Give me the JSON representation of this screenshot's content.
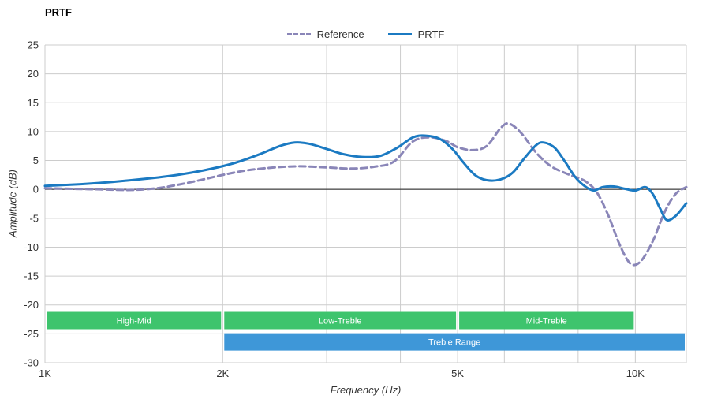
{
  "chart_data": {
    "type": "line",
    "title": "PRTF",
    "xlabel": "Frequency (Hz)",
    "ylabel": "Amplitude (dB)",
    "x_scale": "log",
    "x_unit": "kHz",
    "x_range_khz": [
      1,
      12.2
    ],
    "y_range": [
      -30,
      25
    ],
    "y_ticks": [
      25,
      20,
      15,
      10,
      5,
      0,
      -5,
      -10,
      -15,
      -20,
      -25,
      -30
    ],
    "x_ticks": [
      {
        "khz": 1,
        "label": "1K"
      },
      {
        "khz": 2,
        "label": "2K"
      },
      {
        "khz": 5,
        "label": "5K"
      },
      {
        "khz": 10,
        "label": "10K"
      }
    ],
    "x_gridlines_khz": [
      1,
      2,
      3,
      4,
      5,
      6,
      8,
      10,
      12.2
    ],
    "grid": true,
    "legend_position": "top-center",
    "series": [
      {
        "name": "Reference",
        "style": "dashed",
        "color": "#8a86b8",
        "points": [
          [
            1.0,
            0.2
          ],
          [
            1.1,
            0.1
          ],
          [
            1.25,
            0.0
          ],
          [
            1.4,
            -0.1
          ],
          [
            1.55,
            0.2
          ],
          [
            1.7,
            0.9
          ],
          [
            1.85,
            1.7
          ],
          [
            2.0,
            2.5
          ],
          [
            2.2,
            3.3
          ],
          [
            2.45,
            3.8
          ],
          [
            2.7,
            4.0
          ],
          [
            3.0,
            3.8
          ],
          [
            3.3,
            3.6
          ],
          [
            3.6,
            3.9
          ],
          [
            3.9,
            4.8
          ],
          [
            4.2,
            8.3
          ],
          [
            4.5,
            9.0
          ],
          [
            4.8,
            8.3
          ],
          [
            5.0,
            7.3
          ],
          [
            5.3,
            6.8
          ],
          [
            5.6,
            7.5
          ],
          [
            5.9,
            10.5
          ],
          [
            6.1,
            11.4
          ],
          [
            6.4,
            9.8
          ],
          [
            6.8,
            6.3
          ],
          [
            7.2,
            4.0
          ],
          [
            7.7,
            2.6
          ],
          [
            8.2,
            1.5
          ],
          [
            8.6,
            -0.5
          ],
          [
            9.0,
            -4.5
          ],
          [
            9.4,
            -9.5
          ],
          [
            9.8,
            -12.8
          ],
          [
            10.2,
            -12.5
          ],
          [
            10.7,
            -9.0
          ],
          [
            11.2,
            -4.0
          ],
          [
            11.7,
            -0.8
          ],
          [
            12.2,
            0.4
          ]
        ]
      },
      {
        "name": "PRTF",
        "style": "solid",
        "color": "#1b7ac2",
        "points": [
          [
            1.0,
            0.6
          ],
          [
            1.15,
            0.9
          ],
          [
            1.3,
            1.3
          ],
          [
            1.5,
            1.9
          ],
          [
            1.7,
            2.6
          ],
          [
            1.9,
            3.5
          ],
          [
            2.1,
            4.6
          ],
          [
            2.3,
            6.0
          ],
          [
            2.5,
            7.5
          ],
          [
            2.65,
            8.1
          ],
          [
            2.8,
            7.9
          ],
          [
            3.0,
            7.0
          ],
          [
            3.2,
            6.1
          ],
          [
            3.45,
            5.6
          ],
          [
            3.7,
            5.8
          ],
          [
            3.95,
            7.2
          ],
          [
            4.2,
            9.0
          ],
          [
            4.4,
            9.3
          ],
          [
            4.65,
            8.8
          ],
          [
            4.9,
            7.0
          ],
          [
            5.1,
            4.8
          ],
          [
            5.35,
            2.5
          ],
          [
            5.6,
            1.6
          ],
          [
            5.9,
            1.7
          ],
          [
            6.2,
            2.9
          ],
          [
            6.5,
            5.5
          ],
          [
            6.8,
            7.7
          ],
          [
            7.0,
            8.1
          ],
          [
            7.3,
            7.2
          ],
          [
            7.6,
            4.8
          ],
          [
            7.9,
            2.2
          ],
          [
            8.2,
            0.6
          ],
          [
            8.5,
            -0.2
          ],
          [
            8.8,
            0.4
          ],
          [
            9.2,
            0.5
          ],
          [
            9.6,
            0.1
          ],
          [
            10.0,
            -0.2
          ],
          [
            10.4,
            0.4
          ],
          [
            10.7,
            -0.8
          ],
          [
            11.0,
            -3.2
          ],
          [
            11.3,
            -5.3
          ],
          [
            11.7,
            -4.6
          ],
          [
            12.2,
            -2.4
          ]
        ]
      }
    ],
    "bands": [
      {
        "label": "High-Mid",
        "from_khz": 1.0,
        "to_khz": 2.0,
        "row": "upper",
        "color_key": "band_green"
      },
      {
        "label": "Low-Treble",
        "from_khz": 2.0,
        "to_khz": 5.0,
        "row": "upper",
        "color_key": "band_green"
      },
      {
        "label": "Mid-Treble",
        "from_khz": 5.0,
        "to_khz": 10.0,
        "row": "upper",
        "color_key": "band_green"
      },
      {
        "label": "Treble Range",
        "from_khz": 2.0,
        "to_khz": 12.2,
        "row": "lower",
        "color_key": "band_blue"
      }
    ],
    "colors": {
      "band_green": "#3ec46d",
      "band_blue": "#3e97d8",
      "band_text": "#ffffff",
      "gridline": "#cccccc",
      "zero_line": "#1a1a1a",
      "tick_text": "#333333"
    }
  }
}
